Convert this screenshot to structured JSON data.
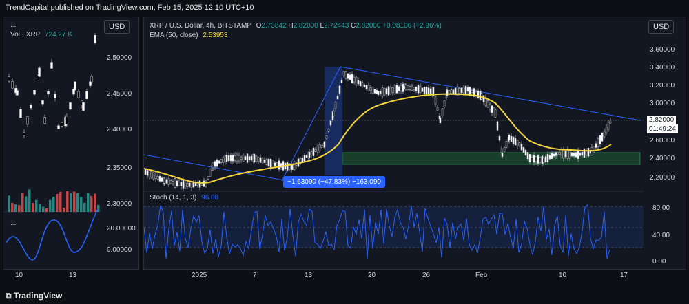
{
  "header": {
    "published": "TrendCapital published on TradingView.com, Feb 15, 2025 12:10 UTC+10"
  },
  "left_panel": {
    "dots": "...",
    "vol_label": "Vol · XRP",
    "vol_value": "724.27 K",
    "currency": "USD",
    "price_ticks": [
      "2.50000",
      "2.45000",
      "2.40000",
      "2.35000",
      "2.30000"
    ],
    "osc_dots": "...",
    "osc_ticks": [
      "20.00000",
      "0.00000"
    ],
    "time_ticks": [
      "10",
      "13"
    ]
  },
  "main_panel": {
    "symbol_line": {
      "name": "XRP / U.S. Dollar, 4h, BITSTAMP",
      "o_label": "O",
      "o": "2.73842",
      "h_label": "H",
      "h": "2.82000",
      "l_label": "L",
      "l": "2.72443",
      "c_label": "C",
      "c": "2.82000",
      "change": "+0.08106 (+2.96%)"
    },
    "ema_label": "EMA (50, close)",
    "ema_value": "2.53953",
    "currency": "USD",
    "price_ticks": [
      "3.60000",
      "3.40000",
      "3.20000",
      "3.00000",
      "2.60000",
      "2.40000",
      "2.20000"
    ],
    "last_price": "2.82000",
    "countdown": "01:49:24",
    "measure_label": "−1.63090 (−47.83%) −163,090",
    "stoch_label": "Stoch (14, 1, 3)",
    "stoch_value": "96.08",
    "stoch_ticks": [
      "80.00",
      "40.00",
      "0.00"
    ],
    "time_ticks": [
      "2025",
      "7",
      "13",
      "20",
      "26",
      "Feb",
      "10",
      "17"
    ]
  },
  "footer": {
    "brand": "TradingView"
  },
  "colors": {
    "up": "#ffffff",
    "down": "#000000",
    "ema": "#f5d63d",
    "stoch": "#2962ff",
    "trend": "#2962ff",
    "zone": "#1f5e35",
    "vol_up": "#26a69a",
    "vol_down": "#ef5350"
  }
}
